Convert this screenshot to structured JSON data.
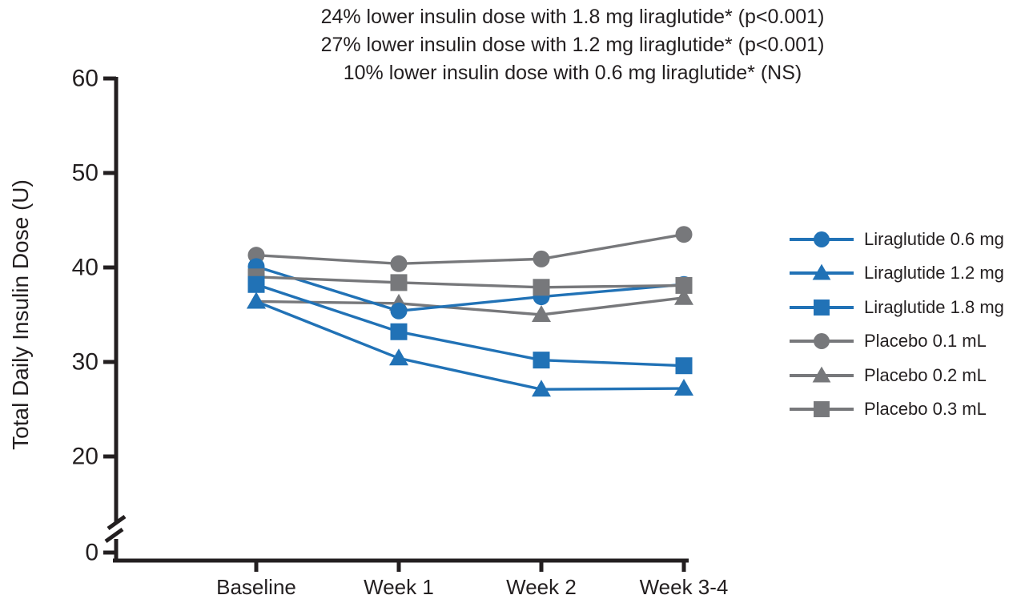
{
  "title": {
    "lines": [
      "24% lower insulin dose with 1.8 mg liraglutide* (p<0.001)",
      "27% lower insulin dose with 1.2 mg liraglutide* (p<0.001)",
      "10% lower insulin dose with 0.6 mg liraglutide* (NS)"
    ]
  },
  "chart_data": {
    "type": "line",
    "title": "24% / 27% / 10% lower insulin dose with liraglutide vs placebo",
    "xlabel": "",
    "ylabel": "Total Daily Insulin Dose (U)",
    "categories": [
      "Baseline",
      "Week 1",
      "Week 2",
      "Week 3-4"
    ],
    "yticks": [
      60,
      50,
      40,
      30,
      20,
      0
    ],
    "ylim": [
      0,
      60
    ],
    "axis_break_between": [
      0,
      20
    ],
    "grid": false,
    "legend_position": "right",
    "series": [
      {
        "name": "Liraglutide 0.6 mg",
        "marker": "circle",
        "color": "#2172B6",
        "values": [
          40.1,
          35.4,
          36.9,
          38.2
        ]
      },
      {
        "name": "Liraglutide 1.2 mg",
        "marker": "triangle",
        "color": "#2172B6",
        "values": [
          36.4,
          30.4,
          27.1,
          27.2
        ]
      },
      {
        "name": "Liraglutide 1.8 mg",
        "marker": "square",
        "color": "#2172B6",
        "values": [
          38.2,
          33.2,
          30.2,
          29.6
        ]
      },
      {
        "name": "Placebo 0.1 mL",
        "marker": "circle",
        "color": "#77787B",
        "values": [
          41.3,
          40.4,
          40.9,
          43.5
        ]
      },
      {
        "name": "Placebo 0.2 mL",
        "marker": "triangle",
        "color": "#77787B",
        "values": [
          36.4,
          36.2,
          35.0,
          36.8
        ]
      },
      {
        "name": "Placebo 0.3 mL",
        "marker": "square",
        "color": "#77787B",
        "values": [
          39.0,
          38.4,
          37.9,
          38.1
        ]
      }
    ],
    "draw_order": [
      "Placebo 0.1 mL",
      "Placebo 0.2 mL",
      "Liraglutide 0.6 mg",
      "Placebo 0.3 mL",
      "Liraglutide 1.2 mg",
      "Liraglutide 1.8 mg"
    ]
  },
  "colors": {
    "liraglutide_blue": "#2172B6",
    "placebo_gray": "#77787B",
    "axis_black": "#231F20",
    "text": "#231F20"
  }
}
